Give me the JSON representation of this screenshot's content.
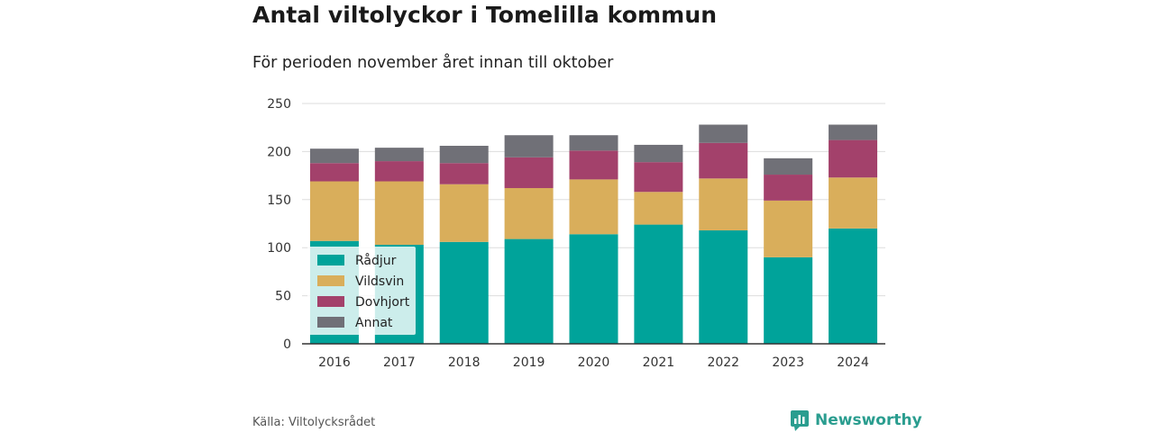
{
  "title": "Antal viltolyckor i Tomelilla kommun",
  "subtitle": "För perioden november året innan till oktober",
  "source": "Källa: Viltolycksrådet",
  "brand": "Newsworthy",
  "brand_color": "#2a9d8f",
  "chart_data": {
    "type": "bar",
    "stacked": true,
    "categories": [
      "2016",
      "2017",
      "2018",
      "2019",
      "2020",
      "2021",
      "2022",
      "2023",
      "2024"
    ],
    "series": [
      {
        "name": "Rådjur",
        "color": "#00a39a",
        "values": [
          107,
          103,
          106,
          109,
          114,
          124,
          118,
          90,
          120
        ]
      },
      {
        "name": "Vildsvin",
        "color": "#d9ae5b",
        "values": [
          62,
          66,
          60,
          53,
          57,
          34,
          54,
          59,
          53
        ]
      },
      {
        "name": "Dovhjort",
        "color": "#a3416b",
        "values": [
          19,
          21,
          22,
          32,
          30,
          31,
          37,
          27,
          39
        ]
      },
      {
        "name": "Annat",
        "color": "#707077",
        "values": [
          15,
          14,
          18,
          23,
          16,
          18,
          19,
          17,
          16
        ]
      }
    ],
    "yticks": [
      0,
      50,
      100,
      150,
      200,
      250
    ],
    "ylim": [
      0,
      250
    ],
    "grid": true,
    "legend_position": "bottom-left inside plot"
  }
}
